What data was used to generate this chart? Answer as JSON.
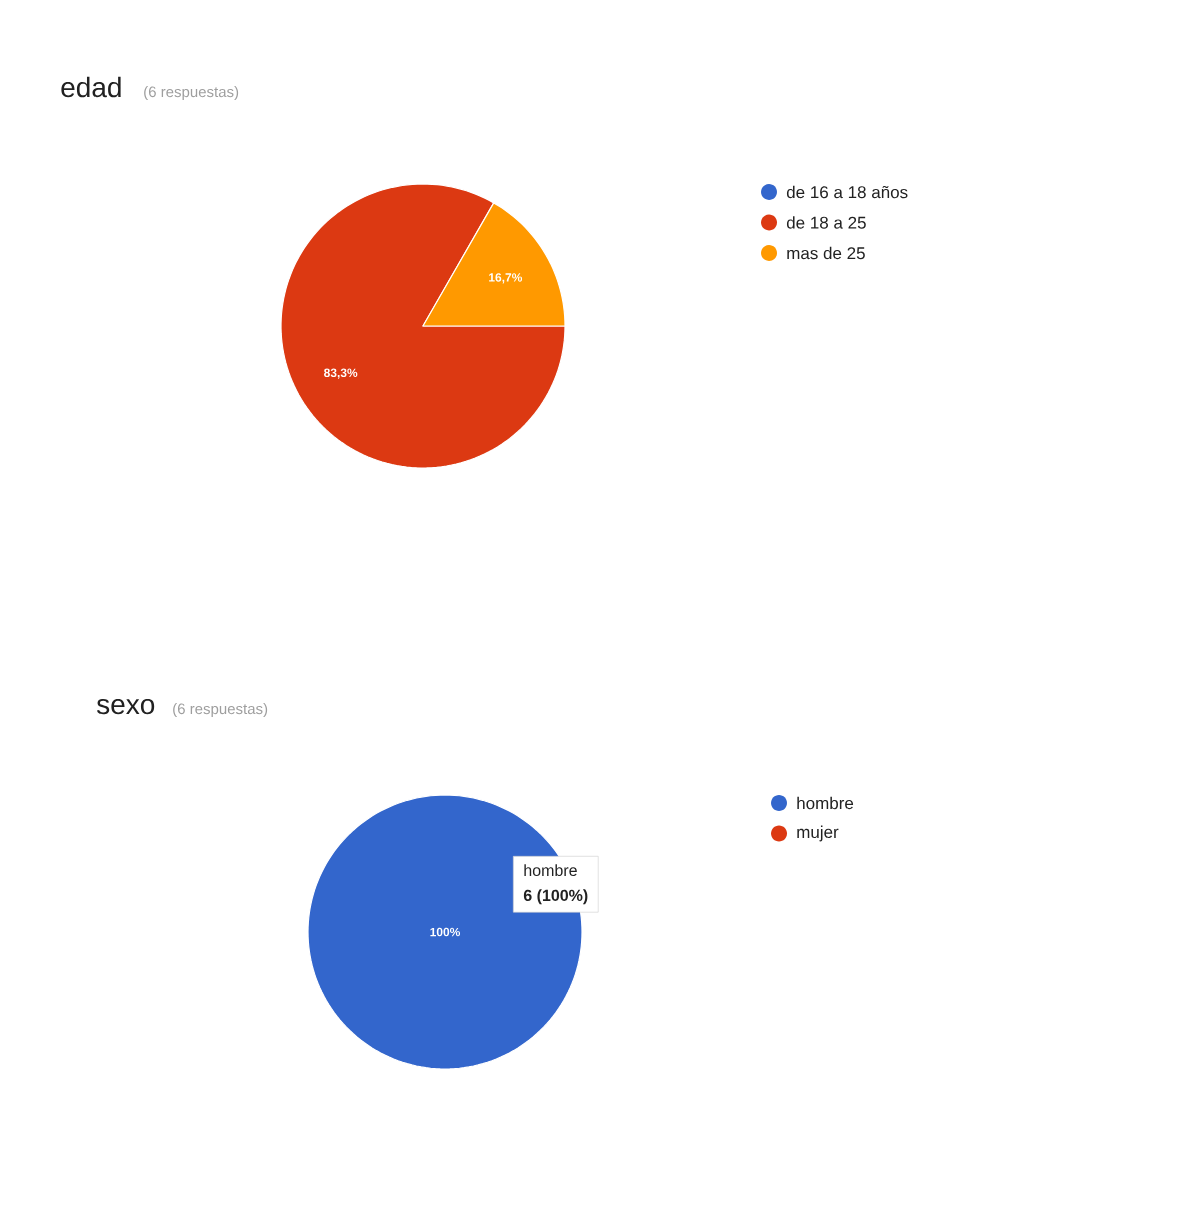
{
  "chart_data": [
    {
      "type": "pie",
      "title": "edad",
      "subtitle": "(6 respuestas)",
      "categories": [
        "de 16 a 18 años",
        "de 18 a 25",
        "mas de 25"
      ],
      "values": [
        0,
        83.3,
        16.7
      ],
      "colors": [
        "#3366cc",
        "#dc3912",
        "#ff9900"
      ],
      "value_labels": [
        null,
        "83,3%",
        "16,7%"
      ],
      "legend": "right"
    },
    {
      "type": "pie",
      "title": "sexo",
      "subtitle": "(6 respuestas)",
      "categories": [
        "hombre",
        "mujer"
      ],
      "values": [
        100,
        0
      ],
      "colors": [
        "#3366cc",
        "#dc3912"
      ],
      "value_labels": [
        "100%",
        null
      ],
      "legend": "right",
      "annotations": [
        "hombre",
        "6 (100%)"
      ]
    }
  ]
}
